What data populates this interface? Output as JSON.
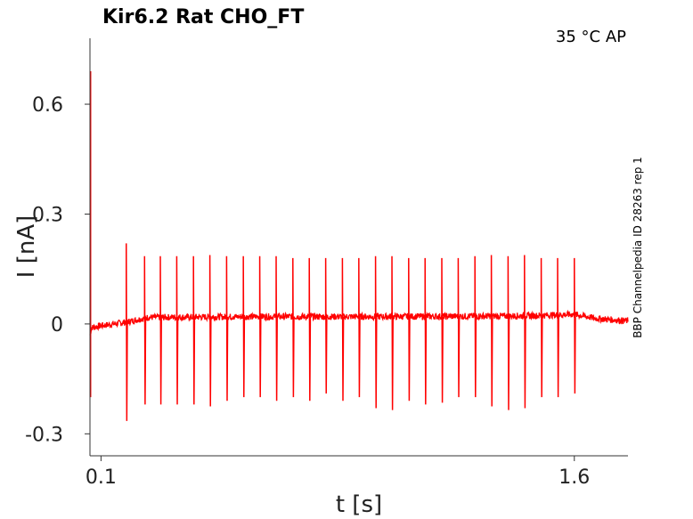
{
  "chart_data": {
    "type": "line",
    "title": "Kir6.2  Rat  CHO_FT",
    "condition": "35 °C  AP",
    "side_label": "BBP Channelpedia ID 28263 rep 1",
    "xlabel": "t [s]",
    "ylabel": "I [nA]",
    "xlim": [
      0.065,
      1.77
    ],
    "ylim": [
      -0.36,
      0.78
    ],
    "xticks": [
      0.1,
      1.6
    ],
    "xtick_labels": [
      "0.1",
      "1.6"
    ],
    "yticks": [
      -0.3,
      0,
      0.3,
      0.6
    ],
    "ytick_labels": [
      "-0.3",
      "0",
      "0.3",
      "0.6"
    ],
    "grid": false,
    "line_color": "#ff0000",
    "series": [
      {
        "baseline": [
          {
            "t": 0.065,
            "i": -0.03
          },
          {
            "t": 0.07,
            "i": -0.01
          },
          {
            "t": 0.1,
            "i": -0.005
          },
          {
            "t": 0.18,
            "i": 0.005
          },
          {
            "t": 0.25,
            "i": 0.018
          },
          {
            "t": 0.6,
            "i": 0.02
          },
          {
            "t": 1.0,
            "i": 0.02
          },
          {
            "t": 1.45,
            "i": 0.022
          },
          {
            "t": 1.6,
            "i": 0.026
          },
          {
            "t": 1.67,
            "i": 0.015
          },
          {
            "t": 1.77,
            "i": 0.008
          }
        ],
        "initial_transient": {
          "t": 0.067,
          "max": 0.69,
          "min": -0.2
        },
        "spikes": [
          {
            "t": 0.18,
            "max": 0.22,
            "min": -0.265
          },
          {
            "t": 0.238,
            "max": 0.185,
            "min": -0.22
          },
          {
            "t": 0.288,
            "max": 0.185,
            "min": -0.22
          },
          {
            "t": 0.34,
            "max": 0.185,
            "min": -0.22
          },
          {
            "t": 0.393,
            "max": 0.185,
            "min": -0.22
          },
          {
            "t": 0.445,
            "max": 0.188,
            "min": -0.225
          },
          {
            "t": 0.498,
            "max": 0.185,
            "min": -0.21
          },
          {
            "t": 0.551,
            "max": 0.185,
            "min": -0.2
          },
          {
            "t": 0.603,
            "max": 0.185,
            "min": -0.2
          },
          {
            "t": 0.655,
            "max": 0.185,
            "min": -0.21
          },
          {
            "t": 0.708,
            "max": 0.18,
            "min": -0.2
          },
          {
            "t": 0.76,
            "max": 0.18,
            "min": -0.21
          },
          {
            "t": 0.812,
            "max": 0.18,
            "min": -0.19
          },
          {
            "t": 0.865,
            "max": 0.18,
            "min": -0.21
          },
          {
            "t": 0.917,
            "max": 0.18,
            "min": -0.2
          },
          {
            "t": 0.97,
            "max": 0.185,
            "min": -0.23
          },
          {
            "t": 1.022,
            "max": 0.185,
            "min": -0.235
          },
          {
            "t": 1.075,
            "max": 0.18,
            "min": -0.21
          },
          {
            "t": 1.127,
            "max": 0.18,
            "min": -0.22
          },
          {
            "t": 1.18,
            "max": 0.18,
            "min": -0.215
          },
          {
            "t": 1.232,
            "max": 0.18,
            "min": -0.2
          },
          {
            "t": 1.285,
            "max": 0.185,
            "min": -0.2
          },
          {
            "t": 1.337,
            "max": 0.188,
            "min": -0.225
          },
          {
            "t": 1.39,
            "max": 0.185,
            "min": -0.235
          },
          {
            "t": 1.442,
            "max": 0.188,
            "min": -0.23
          },
          {
            "t": 1.495,
            "max": 0.18,
            "min": -0.2
          },
          {
            "t": 1.547,
            "max": 0.18,
            "min": -0.2
          },
          {
            "t": 1.6,
            "max": 0.18,
            "min": -0.19
          }
        ]
      }
    ]
  }
}
